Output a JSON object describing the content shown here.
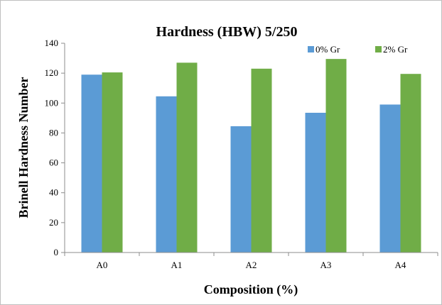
{
  "chart_data": {
    "type": "bar",
    "title": "Hardness (HBW) 5/250",
    "xlabel": "Composition (%)",
    "ylabel": "Brinell Hardness Number",
    "categories": [
      "A0",
      "A1",
      "A2",
      "A3",
      "A4"
    ],
    "series": [
      {
        "name": "0% Gr",
        "color": "#5b9bd5",
        "values": [
          119,
          104.5,
          84.5,
          93.5,
          99
        ]
      },
      {
        "name": "2% Gr",
        "color": "#70ad47",
        "values": [
          120.5,
          127,
          123,
          129.5,
          119.5
        ]
      }
    ],
    "ylim": [
      0,
      140
    ],
    "yticks": [
      0,
      20,
      40,
      60,
      80,
      100,
      120,
      140
    ],
    "grid": false,
    "legend_position": "top-right"
  }
}
